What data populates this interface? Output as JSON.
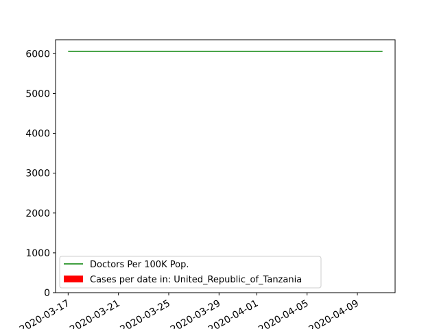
{
  "chart_data": {
    "type": "line",
    "title": "",
    "xlabel": "",
    "ylabel": "",
    "x_tick_labels": [
      "2020-03-17",
      "2020-03-21",
      "2020-03-25",
      "2020-03-29",
      "2020-04-01",
      "2020-04-05",
      "2020-04-09"
    ],
    "x_tick_dates": [
      "2020-03-17",
      "2020-03-21",
      "2020-03-25",
      "2020-03-29",
      "2020-04-01",
      "2020-04-05",
      "2020-04-09"
    ],
    "x_range": [
      "2020-03-16",
      "2020-04-12"
    ],
    "ylim": [
      0,
      6350
    ],
    "y_ticks": [
      0,
      1000,
      2000,
      3000,
      4000,
      5000,
      6000
    ],
    "grid": false,
    "legend_position": "lower-left",
    "series": [
      {
        "name": "Doctors Per 100K Pop.",
        "type": "line",
        "color": "#008000",
        "x": [
          "2020-03-17",
          "2020-04-11"
        ],
        "y": [
          6060,
          6060
        ]
      },
      {
        "name": "Cases per date in: United_Republic_of_Tanzania",
        "type": "bar",
        "color": "#ff0000",
        "x": [],
        "y": []
      }
    ]
  }
}
